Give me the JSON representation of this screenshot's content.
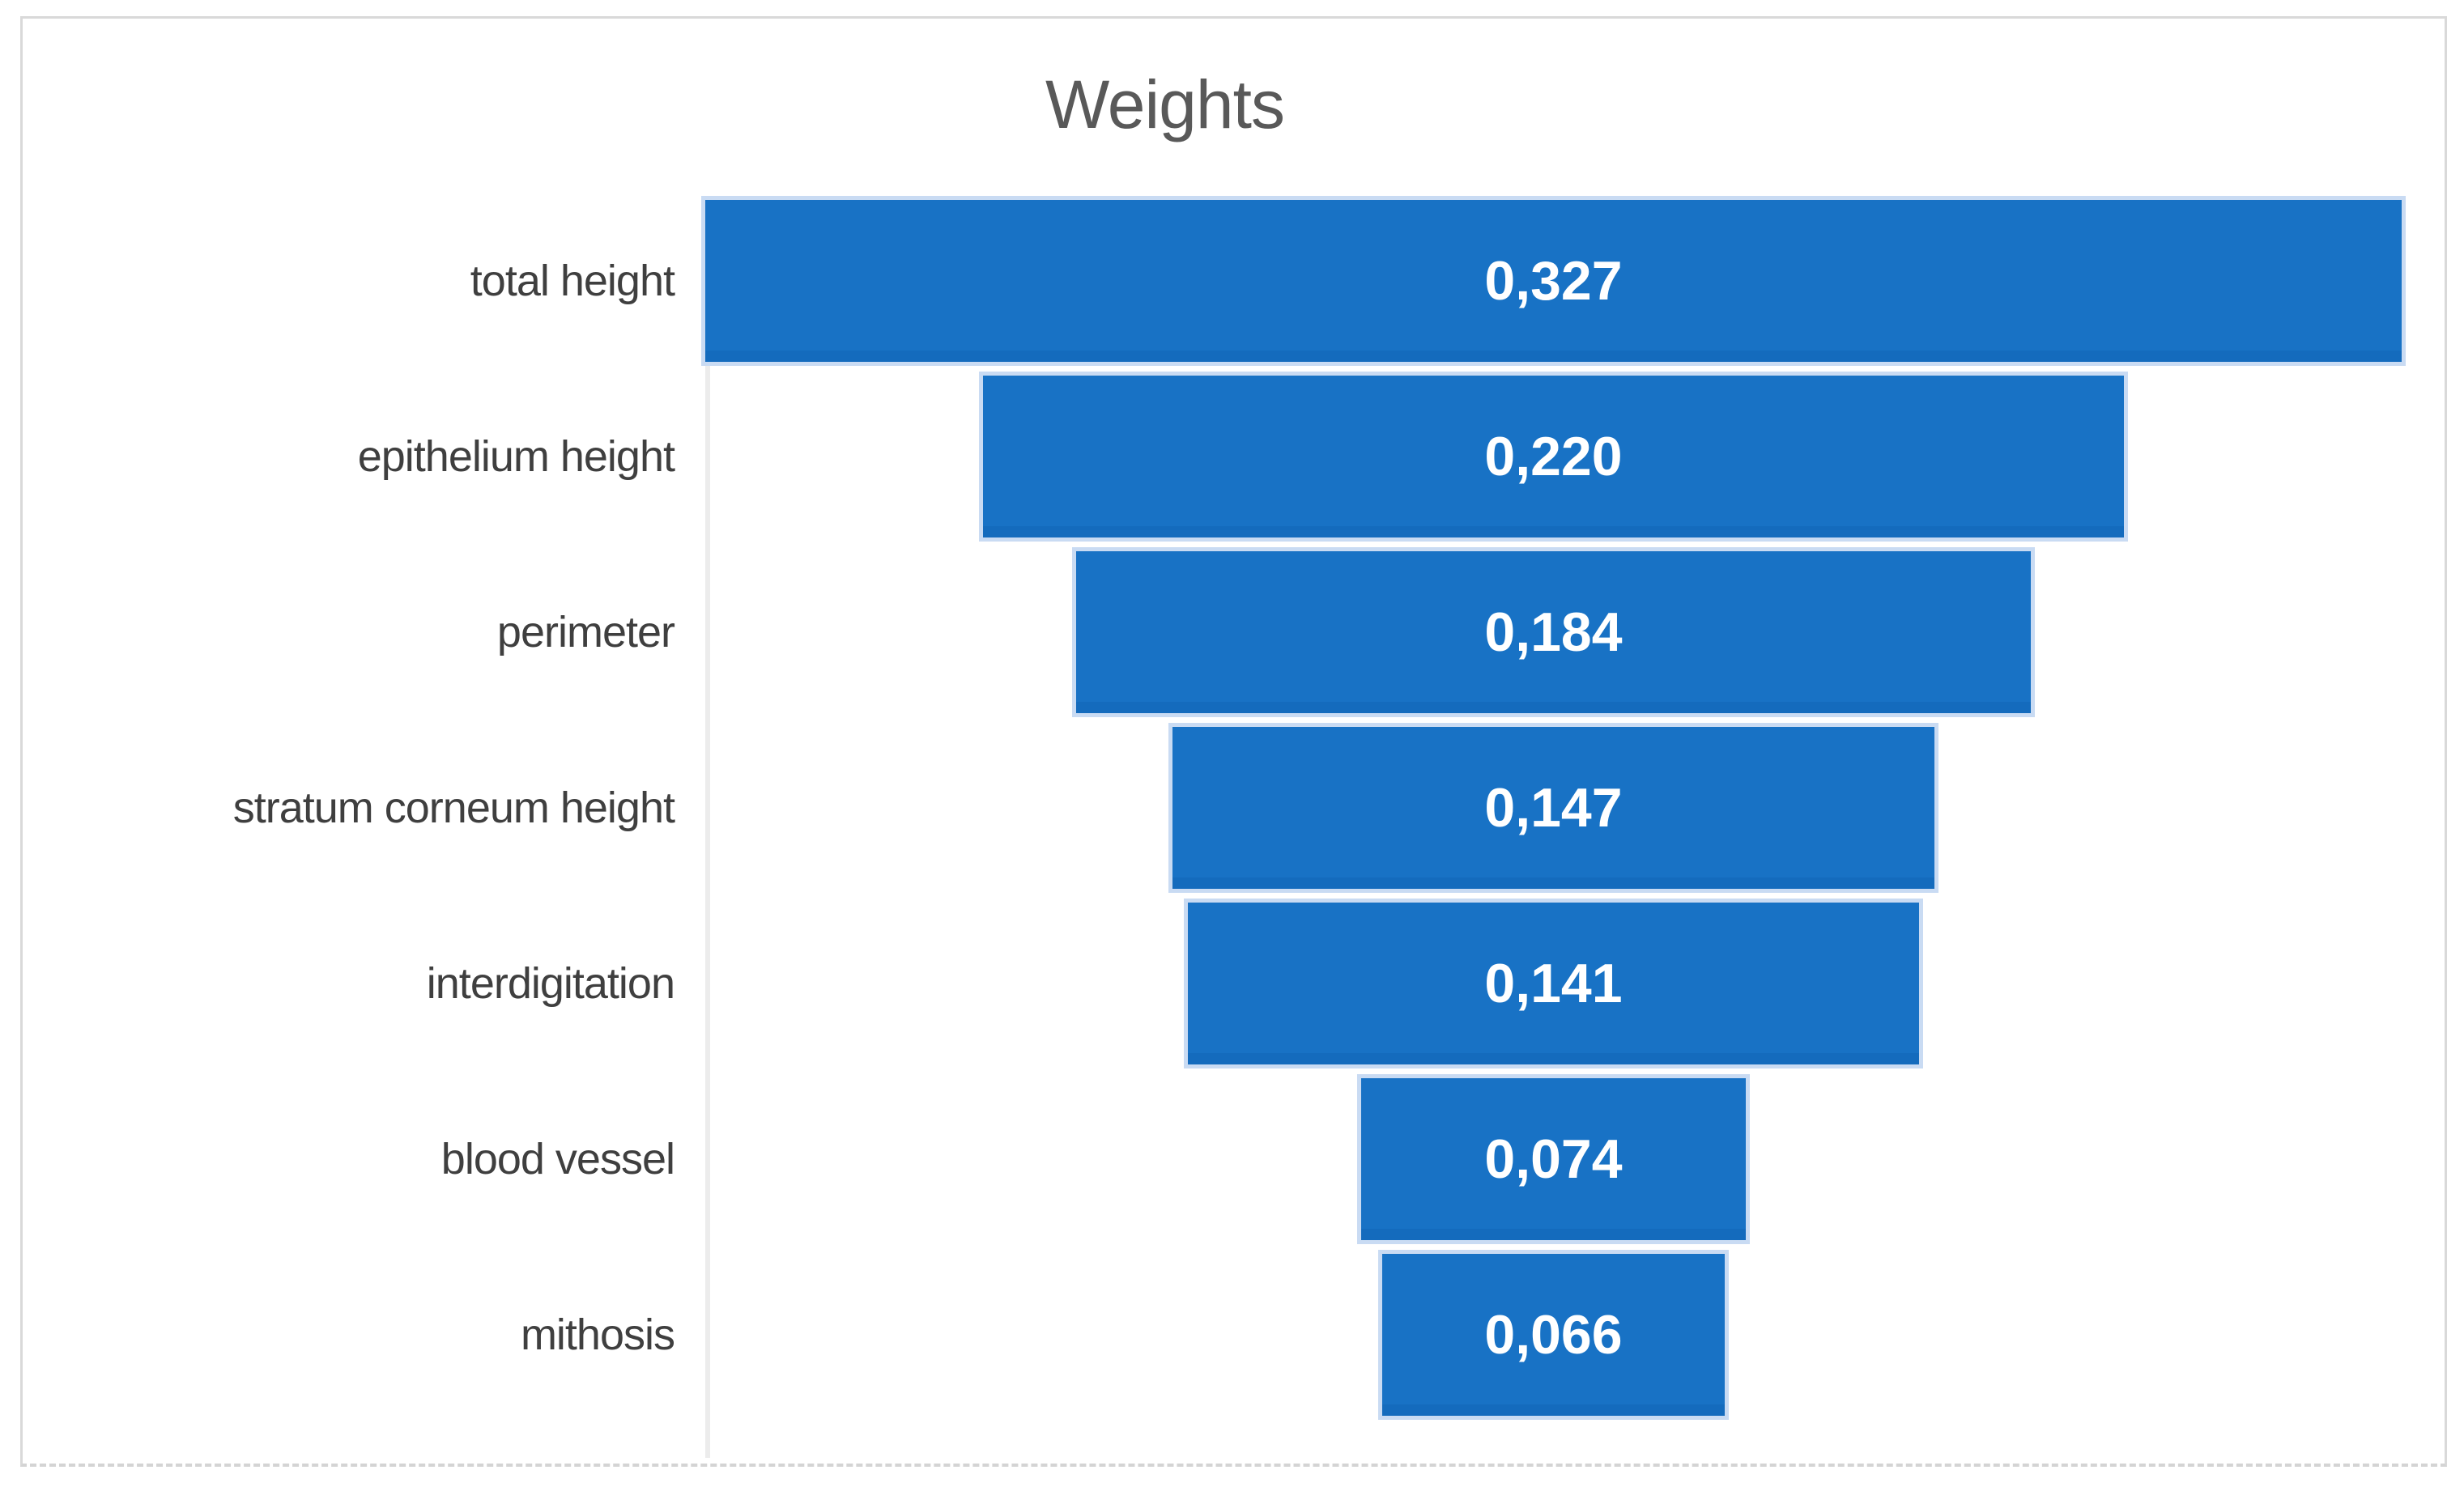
{
  "title": "Weights",
  "colors": {
    "bar_fill": "#1872c5",
    "bar_halo": "#c9dbf3",
    "title_text": "#595959",
    "category_text": "#3f3f3f",
    "value_text": "#ffffff",
    "frame_border": "#d9d9d9",
    "axis_line": "#ececec"
  },
  "chart_data": {
    "type": "bar",
    "subtype": "funnel",
    "orientation": "horizontal-centered",
    "title": "Weights",
    "categories": [
      "total height",
      "epithelium height",
      "perimeter",
      "stratum corneum height",
      "interdigitation",
      "blood vessel",
      "mithosis"
    ],
    "values": [
      0.327,
      0.22,
      0.184,
      0.147,
      0.141,
      0.074,
      0.066
    ],
    "value_labels": [
      "0,327",
      "0,220",
      "0,184",
      "0,147",
      "0,141",
      "0,074",
      "0,066"
    ],
    "series": [
      {
        "name": "Weights",
        "values": [
          0.327,
          0.22,
          0.184,
          0.147,
          0.141,
          0.074,
          0.066
        ]
      }
    ],
    "xlim": [
      0,
      0.327
    ],
    "grid": false,
    "legend": false,
    "value_label_position": "center-inside",
    "bar_color": "#1872c5"
  }
}
